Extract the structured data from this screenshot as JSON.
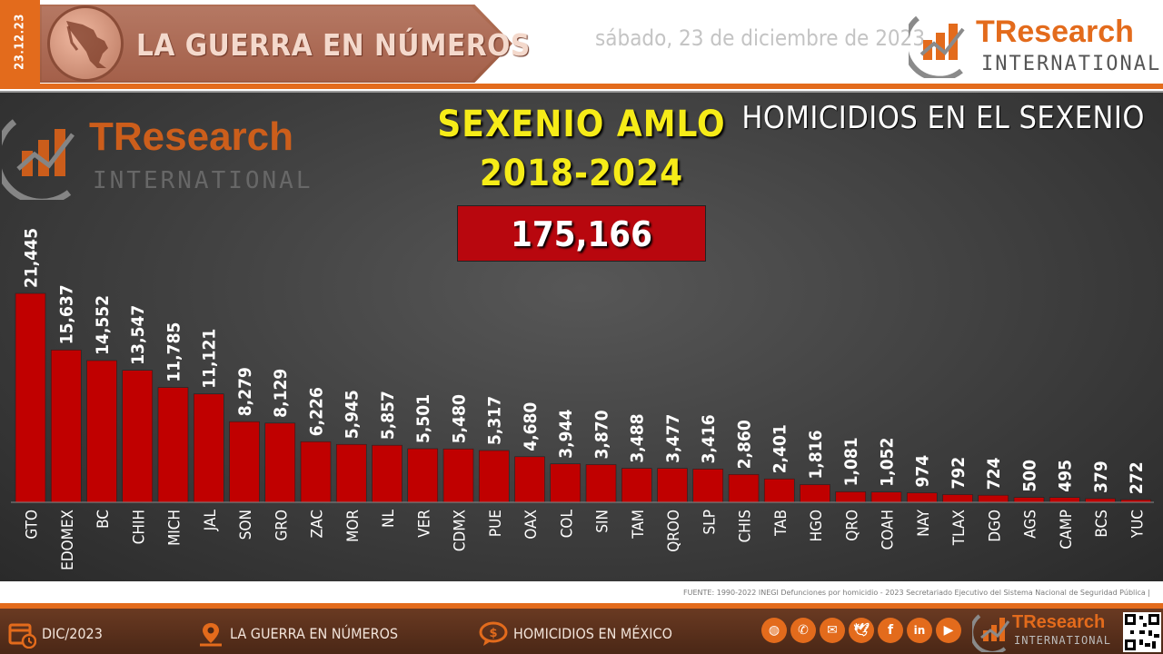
{
  "header": {
    "date_code": "23.12.23",
    "banner_title": "LA GUERRA EN NÚMEROS",
    "date_text": "sábado, 23 de diciembre de 2023",
    "logo_main": "TResearch",
    "logo_sub": "INTERNATIONAL"
  },
  "panel": {
    "title_line1": "SEXENIO AMLO",
    "title_line2": "2018-2024",
    "total": "175,166",
    "right_title": "HOMICIDIOS EN EL SEXENIO",
    "watermark_main": "TResearch",
    "watermark_sub": "INTERNATIONAL"
  },
  "chart_data": {
    "type": "bar",
    "categories": [
      "GTO",
      "EDOMEX",
      "BC",
      "CHIH",
      "MICH",
      "JAL",
      "SON",
      "GRO",
      "ZAC",
      "MOR",
      "NL",
      "VER",
      "CDMX",
      "PUE",
      "OAX",
      "COL",
      "SIN",
      "TAM",
      "QROO",
      "SLP",
      "CHIS",
      "TAB",
      "HGO",
      "QRO",
      "COAH",
      "NAY",
      "TLAX",
      "DGO",
      "AGS",
      "CAMP",
      "BCS",
      "YUC"
    ],
    "values": [
      21445,
      15637,
      14552,
      13547,
      11785,
      11121,
      8279,
      8129,
      6226,
      5945,
      5857,
      5501,
      5480,
      5317,
      4680,
      3944,
      3870,
      3488,
      3477,
      3416,
      2860,
      2401,
      1816,
      1081,
      1052,
      974,
      792,
      724,
      500,
      495,
      379,
      272
    ],
    "labels": [
      "21,445",
      "15,637",
      "14,552",
      "13,547",
      "11,785",
      "11,121",
      "8,279",
      "8,129",
      "6,226",
      "5,945",
      "5,857",
      "5,501",
      "5,480",
      "5,317",
      "4,680",
      "3,944",
      "3,870",
      "3,488",
      "3,477",
      "3,416",
      "2,860",
      "2,401",
      "1,816",
      "1,081",
      "1,052",
      "974",
      "792",
      "724",
      "500",
      "495",
      "379",
      "272"
    ],
    "bar_color": "#c00000",
    "ylim": [
      0,
      21445
    ]
  },
  "source": "FUENTE: 1990-2022 INEGI Defunciones por homicidio - 2023 Secretariado Ejecutivo del Sistema Nacional de Seguridad Pública |",
  "footer": {
    "item1": "DIC/2023",
    "item2": "LA GUERRA EN NÚMEROS",
    "item3": "HOMICIDIOS EN MÉXICO",
    "logo_main": "TResearch",
    "logo_sub": "INTERNATIONAL",
    "social_icons": [
      "globe-icon",
      "phone-icon",
      "mail-icon",
      "twitter-icon",
      "facebook-icon",
      "linkedin-icon",
      "youtube-icon"
    ]
  },
  "colors": {
    "accent": "#e36b1c",
    "title_yellow": "#f6ec18",
    "total_red": "#b8070e"
  }
}
